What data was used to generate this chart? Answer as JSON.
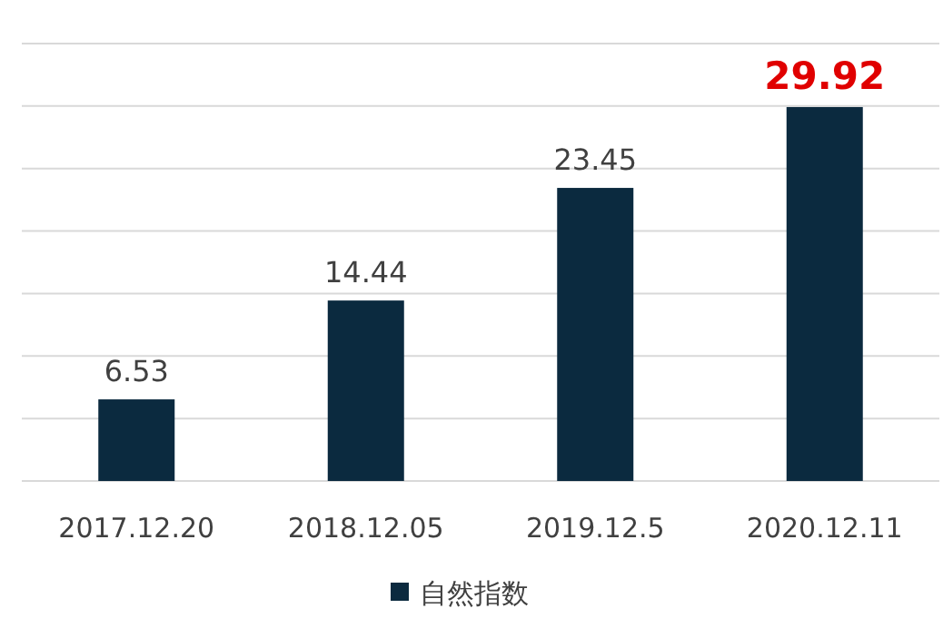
{
  "chart_data": {
    "type": "bar",
    "categories": [
      "2017.12.20",
      "2018.12.05",
      "2019.12.5",
      "2020.12.11"
    ],
    "series": [
      {
        "name": "自然指数",
        "color": "#0b2a3f",
        "values": [
          6.53,
          14.44,
          23.45,
          29.92
        ]
      }
    ],
    "ylim": [
      0,
      35
    ],
    "yticks": [
      {
        "value": 0,
        "label": null
      },
      {
        "value": 5,
        "label": null
      },
      {
        "value": 10,
        "label": null
      },
      {
        "value": 15,
        "label": null
      },
      {
        "value": 20,
        "label": null
      },
      {
        "value": 25,
        "label": null
      },
      {
        "value": 30,
        "label": null
      },
      {
        "value": 35,
        "label": null
      }
    ],
    "tick_labels": "x",
    "grid": "y",
    "legend": "bottom",
    "data_labels": true
  }
}
